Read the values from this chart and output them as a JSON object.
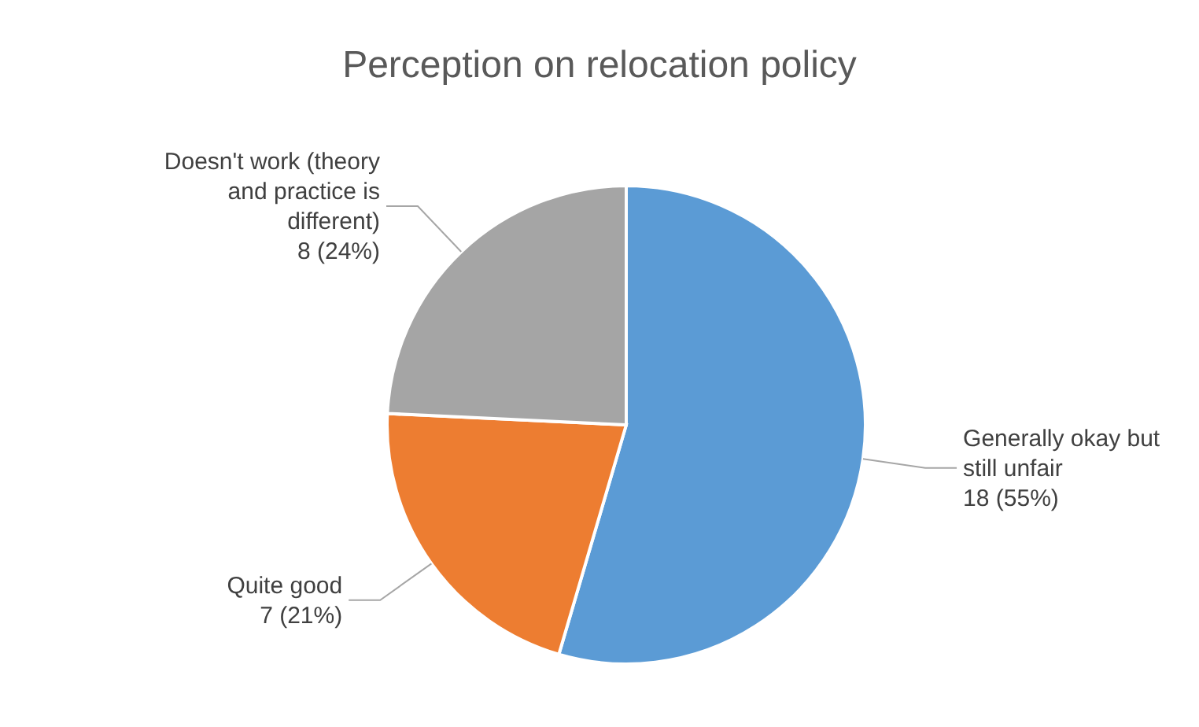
{
  "chart_data": {
    "type": "pie",
    "title": "Perception on relocation policy",
    "categories": [
      "Generally okay but still unfair",
      "Quite good",
      "Doesn't work (theory and practice is different)"
    ],
    "values": [
      18,
      7,
      8
    ],
    "colors": [
      "#5b9bd5",
      "#ed7d31",
      "#a5a5a5"
    ],
    "value_labels": [
      "18 (55%)",
      "7 (21%)",
      "8 (24%)"
    ],
    "legend": false
  }
}
